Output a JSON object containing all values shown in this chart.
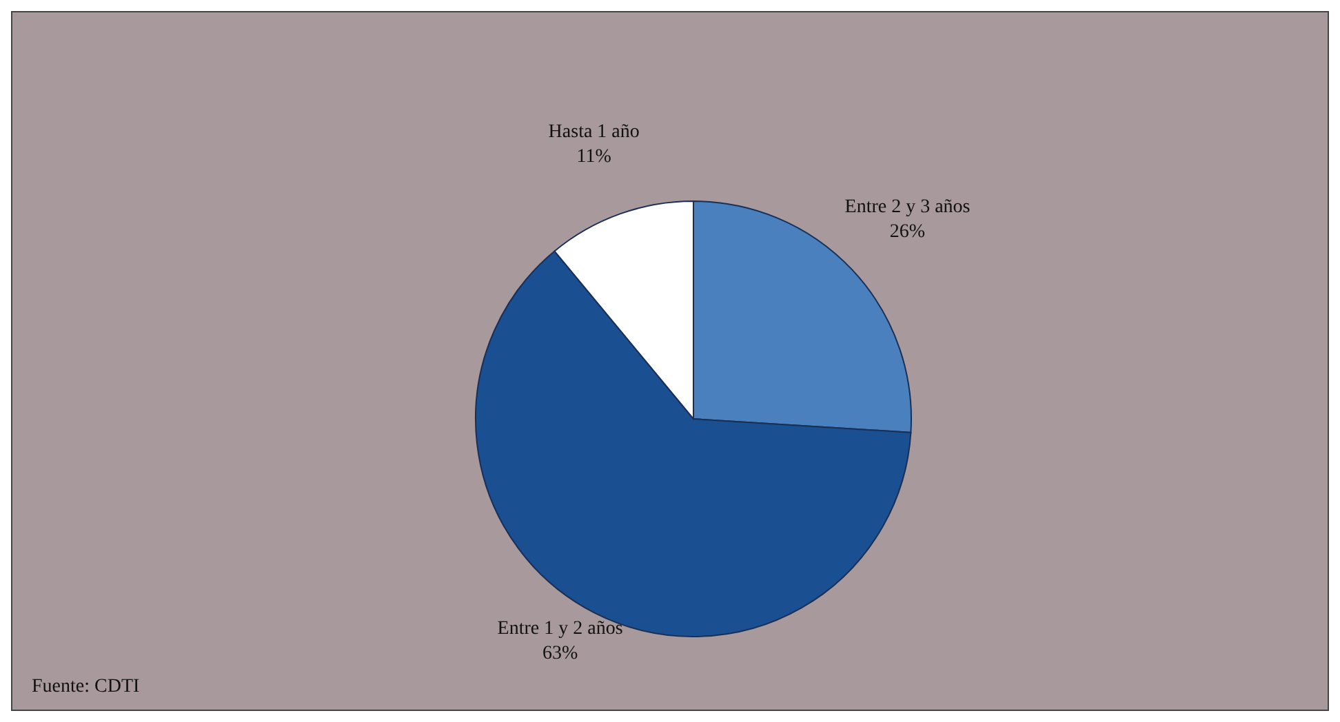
{
  "chart_data": {
    "type": "pie",
    "categories": [
      "Entre 2 y 3 años",
      "Entre 1 y 2 años",
      "Hasta 1 año"
    ],
    "values": [
      26,
      63,
      11
    ],
    "value_labels": [
      "26%",
      "63%",
      "11%"
    ],
    "colors": [
      "#4a80bd",
      "#1a4f91",
      "#ffffff"
    ],
    "annotations": [
      "Fuente: CDTI"
    ]
  }
}
